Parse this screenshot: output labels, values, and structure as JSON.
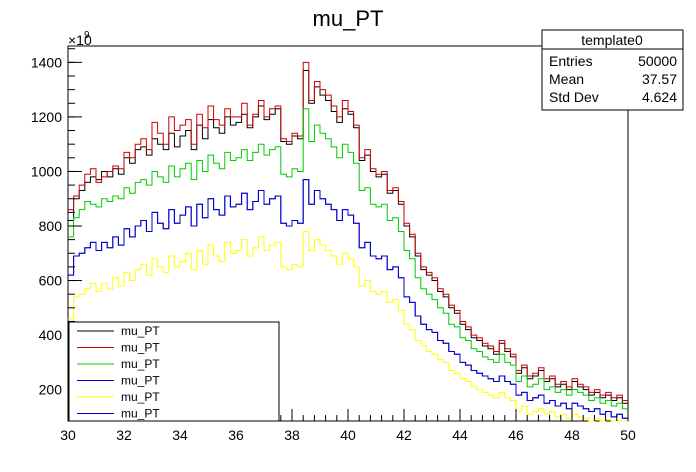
{
  "chart_data": {
    "type": "line",
    "title": "mu_PT",
    "xlabel": "",
    "ylabel": "",
    "xlim": [
      30,
      50
    ],
    "ylim": [
      85,
      1460
    ],
    "y_exponent_label": "×10",
    "y_exponent_power": "9",
    "x_ticks": [
      30,
      32,
      34,
      36,
      38,
      40,
      42,
      44,
      46,
      48,
      50
    ],
    "y_ticks": [
      200,
      400,
      600,
      800,
      1000,
      1200,
      1400
    ],
    "grid": false,
    "stats": {
      "title": "template0",
      "rows": [
        {
          "label": "Entries",
          "value": "50000"
        },
        {
          "label": "Mean",
          "value": "37.57"
        },
        {
          "label": "Std Dev",
          "value": "4.624"
        }
      ]
    },
    "legend_position": "bottom-left",
    "bins_x": [
      30.0,
      30.2,
      30.4,
      30.6,
      30.8,
      31.0,
      31.2,
      31.4,
      31.6,
      31.8,
      32.0,
      32.2,
      32.4,
      32.6,
      32.8,
      33.0,
      33.2,
      33.4,
      33.6,
      33.8,
      34.0,
      34.2,
      34.4,
      34.6,
      34.8,
      35.0,
      35.2,
      35.4,
      35.6,
      35.8,
      36.0,
      36.2,
      36.4,
      36.6,
      36.8,
      37.0,
      37.2,
      37.4,
      37.6,
      37.8,
      38.0,
      38.2,
      38.4,
      38.6,
      38.8,
      39.0,
      39.2,
      39.4,
      39.6,
      39.8,
      40.0,
      40.2,
      40.4,
      40.6,
      40.8,
      41.0,
      41.2,
      41.4,
      41.6,
      41.8,
      42.0,
      42.2,
      42.4,
      42.6,
      42.8,
      43.0,
      43.2,
      43.4,
      43.6,
      43.8,
      44.0,
      44.2,
      44.4,
      44.6,
      44.8,
      45.0,
      45.2,
      45.4,
      45.6,
      45.8,
      46.0,
      46.2,
      46.4,
      46.6,
      46.8,
      47.0,
      47.2,
      47.4,
      47.6,
      47.8,
      48.0,
      48.2,
      48.4,
      48.6,
      48.8,
      49.0,
      49.2,
      49.4,
      49.6,
      49.8
    ],
    "series": [
      {
        "name": "mu_PT",
        "color": "#000000",
        "values": [
          820,
          900,
          930,
          960,
          980,
          970,
          1000,
          980,
          1010,
          990,
          1050,
          1030,
          1080,
          1090,
          1060,
          1120,
          1100,
          1080,
          1140,
          1090,
          1130,
          1150,
          1080,
          1170,
          1120,
          1190,
          1160,
          1140,
          1200,
          1170,
          1180,
          1210,
          1160,
          1200,
          1240,
          1190,
          1210,
          1230,
          1110,
          1100,
          1130,
          1120,
          1370,
          1250,
          1310,
          1280,
          1260,
          1220,
          1180,
          1230,
          1210,
          1160,
          1040,
          1060,
          1000,
          980,
          990,
          920,
          930,
          880,
          800,
          760,
          690,
          640,
          620,
          600,
          560,
          540,
          500,
          480,
          440,
          420,
          390,
          380,
          360,
          350,
          330,
          370,
          340,
          320,
          260,
          280,
          240,
          250,
          270,
          230,
          240,
          210,
          220,
          200,
          230,
          210,
          200,
          180,
          190,
          170,
          180,
          160,
          170,
          150
        ]
      },
      {
        "name": "mu_PT",
        "color": "#cc0000",
        "values": [
          860,
          910,
          950,
          990,
          1010,
          960,
          980,
          1000,
          1020,
          1010,
          1070,
          1050,
          1100,
          1120,
          1080,
          1180,
          1140,
          1100,
          1200,
          1150,
          1170,
          1190,
          1100,
          1210,
          1160,
          1240,
          1190,
          1170,
          1230,
          1200,
          1200,
          1250,
          1170,
          1210,
          1260,
          1200,
          1230,
          1240,
          1120,
          1110,
          1140,
          1130,
          1400,
          1260,
          1330,
          1300,
          1280,
          1240,
          1200,
          1260,
          1220,
          1170,
          1050,
          1080,
          1010,
          990,
          1000,
          930,
          940,
          890,
          810,
          770,
          700,
          650,
          630,
          610,
          570,
          550,
          510,
          490,
          450,
          430,
          400,
          390,
          370,
          360,
          340,
          380,
          350,
          330,
          270,
          290,
          250,
          260,
          280,
          240,
          250,
          220,
          230,
          210,
          240,
          220,
          210,
          190,
          200,
          180,
          190,
          170,
          180,
          160
        ]
      },
      {
        "name": "mu_PT",
        "color": "#00cc00",
        "values": [
          760,
          830,
          860,
          890,
          880,
          870,
          900,
          890,
          910,
          900,
          940,
          920,
          960,
          970,
          950,
          1000,
          980,
          960,
          1020,
          980,
          1010,
          1030,
          970,
          1040,
          1000,
          1060,
          1030,
          1010,
          1070,
          1040,
          1050,
          1080,
          1040,
          1070,
          1100,
          1060,
          1080,
          1090,
          990,
          980,
          1010,
          1000,
          1230,
          1110,
          1170,
          1140,
          1120,
          1090,
          1050,
          1100,
          1070,
          1030,
          930,
          940,
          880,
          870,
          880,
          820,
          830,
          780,
          710,
          680,
          610,
          570,
          550,
          530,
          500,
          480,
          440,
          430,
          390,
          380,
          350,
          340,
          320,
          310,
          300,
          330,
          300,
          290,
          230,
          250,
          210,
          220,
          240,
          200,
          210,
          190,
          200,
          180,
          200,
          190,
          180,
          160,
          170,
          150,
          160,
          140,
          150,
          130
        ]
      },
      {
        "name": "mu_PT",
        "color": "#0000cc",
        "values": [
          620,
          690,
          700,
          720,
          740,
          710,
          740,
          720,
          760,
          730,
          790,
          760,
          800,
          820,
          780,
          850,
          810,
          790,
          860,
          810,
          840,
          870,
          800,
          880,
          830,
          900,
          860,
          840,
          910,
          870,
          880,
          920,
          860,
          890,
          930,
          880,
          900,
          910,
          810,
          800,
          820,
          810,
          970,
          880,
          930,
          900,
          880,
          860,
          820,
          860,
          840,
          810,
          720,
          740,
          690,
          680,
          690,
          640,
          650,
          610,
          540,
          520,
          470,
          440,
          420,
          410,
          380,
          370,
          340,
          330,
          300,
          290,
          270,
          260,
          250,
          240,
          230,
          250,
          230,
          220,
          180,
          190,
          160,
          170,
          180,
          150,
          160,
          140,
          150,
          130,
          150,
          140,
          130,
          120,
          130,
          110,
          120,
          100,
          110,
          95
        ]
      },
      {
        "name": "mu_PT",
        "color": "#ffff00",
        "values": [
          460,
          540,
          550,
          570,
          590,
          560,
          590,
          570,
          610,
          580,
          630,
          600,
          640,
          660,
          620,
          680,
          650,
          630,
          690,
          650,
          670,
          700,
          640,
          710,
          660,
          730,
          690,
          670,
          740,
          700,
          710,
          750,
          690,
          720,
          760,
          710,
          730,
          740,
          650,
          640,
          660,
          650,
          780,
          710,
          750,
          730,
          710,
          690,
          660,
          700,
          680,
          650,
          580,
          600,
          560,
          550,
          560,
          520,
          530,
          490,
          440,
          420,
          380,
          360,
          340,
          330,
          310,
          300,
          270,
          260,
          240,
          230,
          210,
          200,
          190,
          180,
          170,
          190,
          170,
          160,
          120,
          140,
          110,
          120,
          130,
          110,
          120,
          100,
          110,
          95,
          110,
          100,
          95,
          85,
          95,
          80,
          90,
          75,
          85,
          70
        ]
      },
      {
        "name": "mu_PT",
        "color": "#0000cc",
        "values": [
          620,
          690,
          700,
          720,
          740,
          710,
          740,
          720,
          760,
          730,
          790,
          760,
          800,
          820,
          780,
          850,
          810,
          790,
          860,
          810,
          840,
          870,
          800,
          880,
          830,
          900,
          860,
          840,
          910,
          870,
          880,
          920,
          860,
          890,
          930,
          880,
          900,
          910,
          810,
          800,
          820,
          810,
          970,
          880,
          930,
          900,
          880,
          860,
          820,
          860,
          840,
          810,
          720,
          740,
          690,
          680,
          690,
          640,
          650,
          610,
          540,
          520,
          470,
          440,
          420,
          410,
          380,
          370,
          340,
          330,
          300,
          290,
          270,
          260,
          250,
          240,
          230,
          250,
          230,
          220,
          180,
          190,
          160,
          170,
          180,
          150,
          160,
          140,
          150,
          130,
          150,
          140,
          130,
          120,
          130,
          110,
          120,
          100,
          110,
          95
        ]
      }
    ]
  }
}
